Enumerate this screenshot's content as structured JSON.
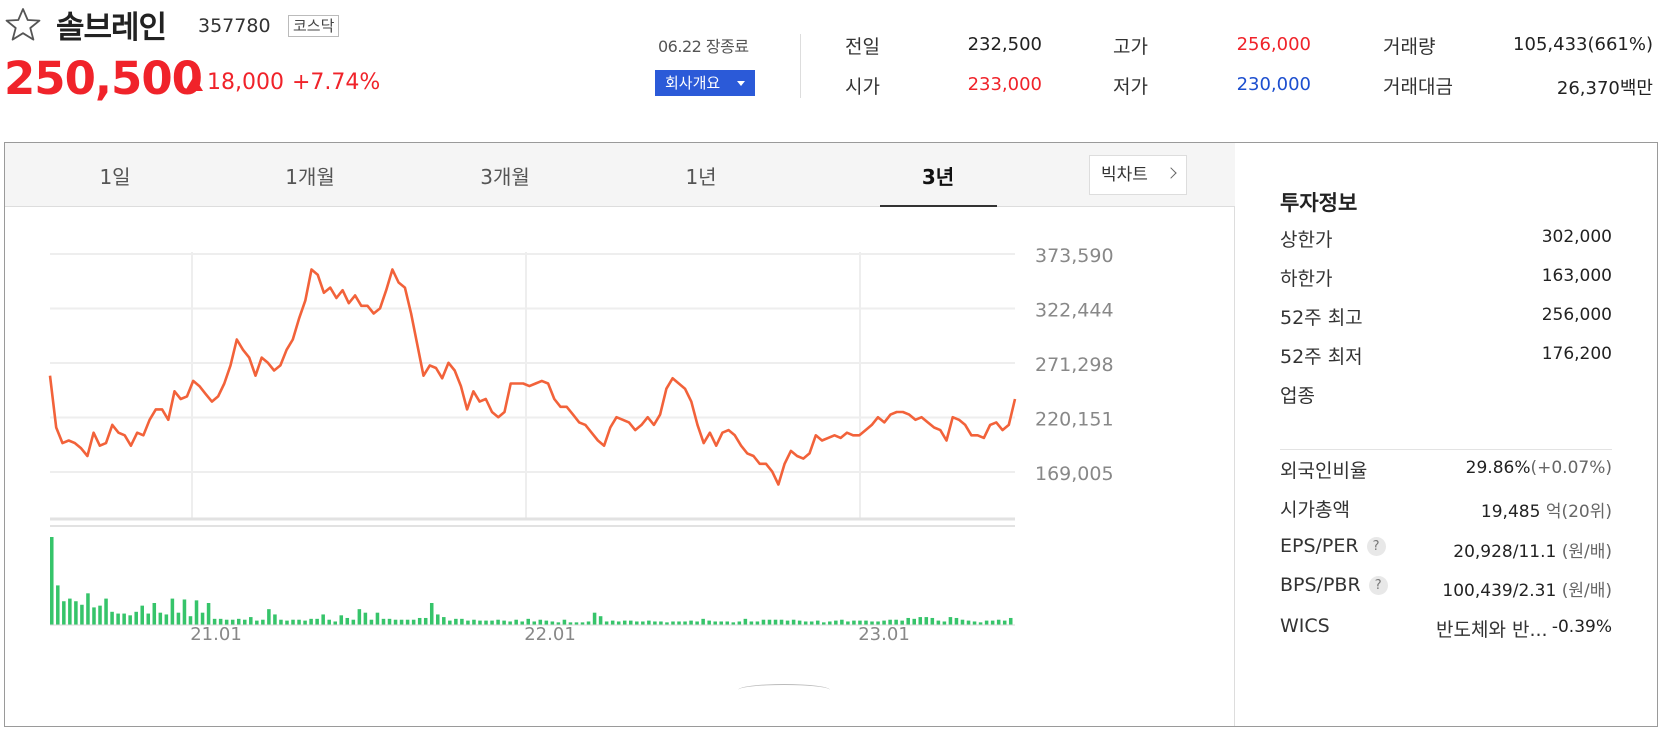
{
  "stock": {
    "name": "솔브레인",
    "code": "357780",
    "market": "코스닥",
    "price": "250,500",
    "change": "18,000",
    "change_rate": "+7.74%",
    "close_date": "06.22 장종료",
    "company_button": "회사개요"
  },
  "quote": {
    "prev_close_label": "전일",
    "prev_close": "232,500",
    "open_label": "시가",
    "open": "233,000",
    "high_label": "고가",
    "high": "256,000",
    "low_label": "저가",
    "low": "230,000",
    "volume_label": "거래량",
    "volume": "105,433(661%)",
    "amount_label": "거래대금",
    "amount": "26,370",
    "amount_unit": "백만"
  },
  "tabs": [
    "1일",
    "1개월",
    "3개월",
    "1년",
    "3년"
  ],
  "active_tab": "3년",
  "bigchart_label": "빅차트",
  "colors": {
    "up": "#f0232a",
    "down": "#1d4fcf",
    "line": "#f2623a",
    "volume": "#36c46a"
  },
  "chart_data": {
    "type": "line",
    "y_ticks": [
      "373,590",
      "322,444",
      "271,298",
      "220,151",
      "169,005"
    ],
    "x_ticks": [
      "21.01",
      "22.01",
      "23.01"
    ],
    "ylim": [
      169005,
      373590
    ],
    "grid": true,
    "price": [
      258000,
      218000,
      206000,
      208000,
      206000,
      202000,
      196000,
      214000,
      204000,
      206000,
      220000,
      214000,
      212000,
      204000,
      214000,
      212000,
      224000,
      232000,
      232000,
      224000,
      246000,
      240000,
      242000,
      254000,
      250000,
      244000,
      238000,
      242000,
      252000,
      266000,
      286000,
      278000,
      272000,
      258000,
      272000,
      268000,
      262000,
      266000,
      278000,
      286000,
      302000,
      316000,
      340000,
      336000,
      322000,
      326000,
      318000,
      324000,
      314000,
      320000,
      312000,
      312000,
      306000,
      310000,
      324000,
      340000,
      330000,
      326000,
      306000,
      282000,
      258000,
      266000,
      264000,
      256000,
      268000,
      262000,
      250000,
      232000,
      246000,
      238000,
      240000,
      230000,
      226000,
      230000,
      252000,
      252000,
      252000,
      250000,
      252000,
      254000,
      252000,
      240000,
      234000,
      234000,
      228000,
      222000,
      220000,
      214000,
      208000,
      204000,
      218000,
      226000,
      224000,
      222000,
      216000,
      220000,
      226000,
      220000,
      228000,
      248000,
      256000,
      252000,
      248000,
      238000,
      220000,
      206000,
      214000,
      204000,
      214000,
      216000,
      212000,
      204000,
      198000,
      196000,
      190000,
      190000,
      184000,
      174000,
      190000,
      200000,
      196000,
      194000,
      198000,
      212000,
      208000,
      210000,
      212000,
      210000,
      214000,
      212000,
      212000,
      216000,
      220000,
      226000,
      222000,
      228000,
      230000,
      230000,
      228000,
      224000,
      226000,
      222000,
      218000,
      216000,
      208000,
      226000,
      224000,
      220000,
      212000,
      212000,
      210000,
      220000,
      222000,
      216000,
      220000,
      240000
    ],
    "volume": [
      100,
      45,
      27,
      30,
      27,
      23,
      36,
      20,
      22,
      30,
      15,
      13,
      13,
      11,
      15,
      22,
      13,
      25,
      14,
      12,
      30,
      14,
      29,
      10,
      28,
      14,
      25,
      7,
      7,
      6,
      6,
      7,
      6,
      9,
      5,
      6,
      18,
      12,
      6,
      5,
      6,
      6,
      5,
      7,
      7,
      12,
      6,
      4,
      11,
      8,
      6,
      18,
      14,
      6,
      14,
      7,
      7,
      6,
      6,
      6,
      6,
      8,
      8,
      25,
      12,
      9,
      5,
      7,
      7,
      5,
      6,
      5,
      5,
      5,
      6,
      5,
      4,
      6,
      4,
      7,
      4,
      6,
      5,
      4,
      3,
      6,
      3,
      3,
      3,
      4,
      14,
      10,
      4,
      5,
      4,
      5,
      5,
      4,
      4,
      5,
      4,
      4,
      3,
      4,
      4,
      4,
      5,
      4,
      7,
      5,
      4,
      4,
      4,
      3,
      4,
      7,
      4,
      4,
      6,
      6,
      6,
      6,
      5,
      6,
      5,
      4,
      4,
      5,
      3,
      4,
      5,
      6,
      4,
      5,
      5,
      5,
      4,
      4,
      5,
      6,
      6,
      5,
      8,
      7,
      9,
      9,
      8,
      5,
      4,
      9,
      8,
      6,
      5,
      4,
      3,
      5,
      5,
      6,
      5,
      8
    ],
    "volume_scale": "relative"
  },
  "info_panel": {
    "title": "투자정보",
    "upper_limit_label": "상한가",
    "upper_limit": "302,000",
    "lower_limit_label": "하한가",
    "lower_limit": "163,000",
    "high52_label": "52주 최고",
    "high52": "256,000",
    "low52_label": "52주 최저",
    "low52": "176,200",
    "industry_label": "업종",
    "foreign_label": "외국인비율",
    "foreign": "29.86%",
    "foreign_change": "(+0.07%)",
    "mcap_label": "시가총액",
    "mcap": "19,485",
    "mcap_unit": "억",
    "mcap_rank": "(20위)",
    "eps_label": "EPS/PER",
    "eps": "20,928/11.1",
    "eps_unit": "(원/배)",
    "bps_label": "BPS/PBR",
    "bps": "100,439/2.31",
    "bps_unit": "(원/배)",
    "help_mark": "?",
    "wics_label": "WICS",
    "wics_name": "반도체와 반...",
    "wics_rate": "-0.39%"
  }
}
